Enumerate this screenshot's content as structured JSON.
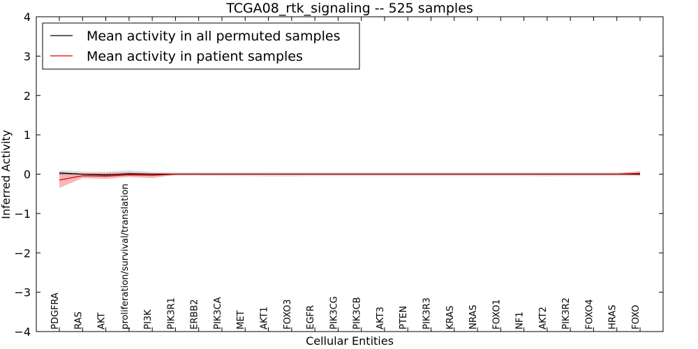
{
  "chart_data": {
    "type": "line",
    "title": "TCGA08_rtk_signaling -- 525 samples",
    "xlabel": "Cellular Entities",
    "ylabel": "Inferred Activity",
    "ylim": [
      -4,
      4
    ],
    "yticks": [
      4,
      3,
      2,
      1,
      0,
      -1,
      -2,
      -3,
      -4
    ],
    "ytick_labels": [
      "4",
      "3",
      "2",
      "1",
      "0",
      "−1",
      "−2",
      "−3",
      "−4"
    ],
    "grid": false,
    "legend_position": "top-left",
    "categories": [
      "PDGFRA",
      "RAS",
      "AKT",
      "proliferation/survival/translation",
      "PI3K",
      "PIK3R1",
      "ERBB2",
      "PIK3CA",
      "MET",
      "AKT1",
      "FOXO3",
      "EGFR",
      "PIK3CG",
      "PIK3CB",
      "AKT3",
      "PTEN",
      "PIK3R3",
      "KRAS",
      "NRAS",
      "FOXO1",
      "NF1",
      "AKT2",
      "PIK3R2",
      "FOXO4",
      "HRAS",
      "FOXO"
    ],
    "series": [
      {
        "name": "Mean activity in all permuted samples",
        "color": "#000000",
        "band_color": "#c8c8c8",
        "values": [
          0.03,
          0.0,
          -0.02,
          0.01,
          0.0,
          0.0,
          0.0,
          0.0,
          0.0,
          0.0,
          0.0,
          0.0,
          0.0,
          0.0,
          0.0,
          0.0,
          0.0,
          0.0,
          0.0,
          0.0,
          0.0,
          0.0,
          0.0,
          0.0,
          0.0,
          0.0
        ],
        "lower": [
          -0.06,
          -0.08,
          -0.08,
          -0.04,
          -0.04,
          -0.04,
          -0.04,
          -0.05,
          -0.05,
          -0.06,
          -0.06,
          -0.05,
          -0.05,
          -0.05,
          -0.05,
          -0.05,
          -0.05,
          -0.05,
          -0.05,
          -0.05,
          -0.05,
          -0.06,
          -0.05,
          -0.05,
          -0.05,
          -0.05
        ],
        "upper": [
          0.1,
          0.07,
          0.06,
          0.1,
          0.06,
          0.05,
          0.05,
          0.05,
          0.05,
          0.05,
          0.05,
          0.05,
          0.05,
          0.05,
          0.05,
          0.05,
          0.05,
          0.05,
          0.05,
          0.05,
          0.05,
          0.05,
          0.05,
          0.05,
          0.05,
          0.05
        ]
      },
      {
        "name": "Mean activity in patient samples",
        "color": "#e00000",
        "band_color": "#f2a0a0",
        "values": [
          -0.15,
          -0.04,
          -0.05,
          -0.02,
          -0.03,
          0.0,
          0.0,
          0.0,
          0.0,
          0.0,
          0.0,
          0.0,
          0.0,
          0.0,
          0.0,
          0.0,
          0.0,
          0.0,
          0.0,
          0.0,
          0.0,
          0.0,
          0.0,
          0.0,
          0.0,
          0.02
        ],
        "lower": [
          -0.35,
          -0.1,
          -0.12,
          -0.07,
          -0.1,
          -0.02,
          -0.02,
          -0.02,
          -0.02,
          -0.02,
          -0.02,
          -0.02,
          -0.02,
          -0.02,
          -0.02,
          -0.02,
          -0.02,
          -0.02,
          -0.02,
          -0.02,
          -0.02,
          -0.02,
          -0.02,
          -0.02,
          -0.02,
          -0.03
        ],
        "upper": [
          0.05,
          0.02,
          0.04,
          0.05,
          0.03,
          0.02,
          0.02,
          0.02,
          0.02,
          0.02,
          0.02,
          0.02,
          0.02,
          0.02,
          0.02,
          0.02,
          0.02,
          0.02,
          0.02,
          0.02,
          0.02,
          0.02,
          0.02,
          0.02,
          0.02,
          0.08
        ]
      }
    ]
  }
}
